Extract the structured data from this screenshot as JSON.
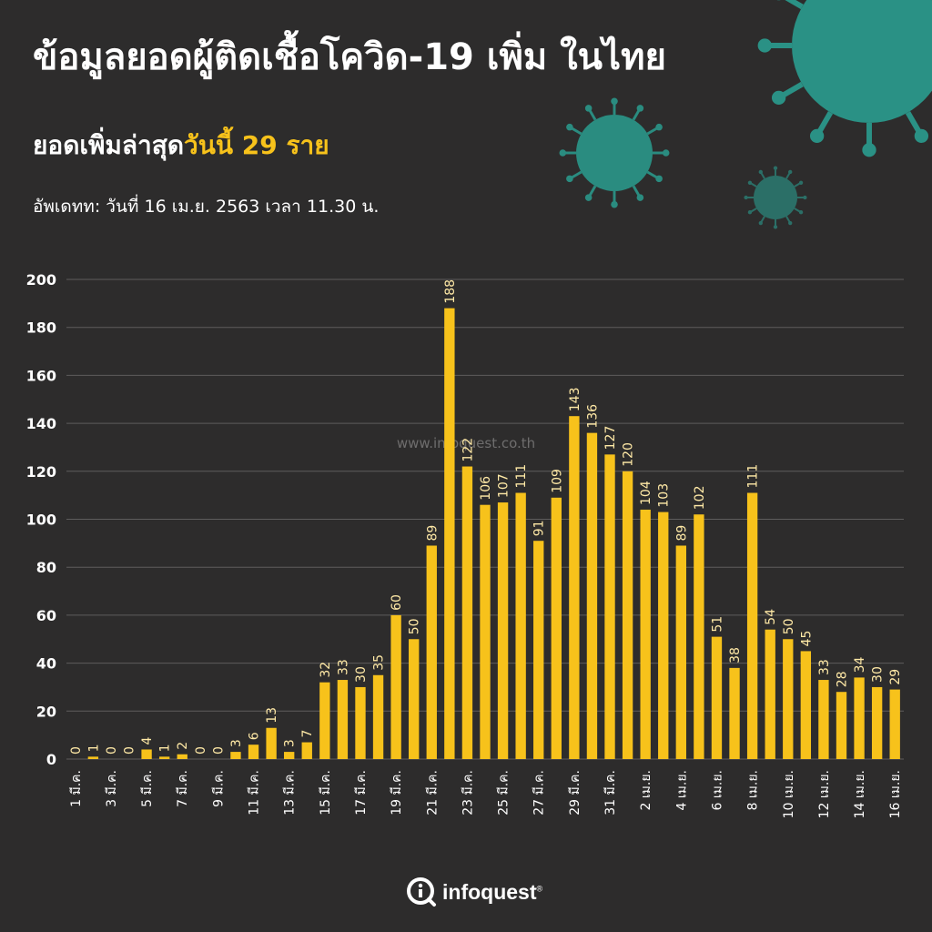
{
  "header": {
    "title": "ข้อมูลยอดผู้ติดเชื้อโควิด-19 เพิ่ม ในไทย",
    "subtitle_prefix": "ยอดเพิ่มล่าสุด",
    "subtitle_highlight": "วันนี้ 29 ราย",
    "update_label": "อัพเดทท: วันที่",
    "update_value": "16 เม.ย. 2563 เวลา 11.30 น."
  },
  "watermark": "www.infoquest.co.th",
  "footer": {
    "brand": "infoquest",
    "mark": "®"
  },
  "colors": {
    "background": "#2d2c2c",
    "bar": "#f7c21b",
    "text": "#ffffff",
    "virus": "#2a9d8f"
  },
  "chart_data": {
    "type": "bar",
    "categories": [
      "1 มี.ค.",
      "2 มี.ค.",
      "3 มี.ค.",
      "4 มี.ค.",
      "5 มี.ค.",
      "6 มี.ค.",
      "7 มี.ค.",
      "8 มี.ค.",
      "9 มี.ค.",
      "10 มี.ค.",
      "11 มี.ค.",
      "12 มี.ค.",
      "13 มี.ค.",
      "14 มี.ค.",
      "15 มี.ค.",
      "16 มี.ค.",
      "17 มี.ค.",
      "18 มี.ค.",
      "19 มี.ค.",
      "20 มี.ค.",
      "21 มี.ค.",
      "22 มี.ค.",
      "23 มี.ค.",
      "24 มี.ค.",
      "25 มี.ค.",
      "26 มี.ค.",
      "27 มี.ค.",
      "28 มี.ค.",
      "29 มี.ค.",
      "30 มี.ค.",
      "31 มี.ค.",
      "1 เม.ย.",
      "2 เม.ย.",
      "3 เม.ย.",
      "4 เม.ย.",
      "5 เม.ย.",
      "6 เม.ย.",
      "7 เม.ย.",
      "8 เม.ย.",
      "9 เม.ย.",
      "10 เม.ย.",
      "11 เม.ย.",
      "12 เม.ย.",
      "13 เม.ย.",
      "14 เม.ย.",
      "15 เม.ย.",
      "16 เม.ย."
    ],
    "visible_tick_labels": [
      "1 มี.ค.",
      "3 มี.ค.",
      "5 มี.ค.",
      "7 มี.ค.",
      "9 มี.ค.",
      "11 มี.ค.",
      "13 มี.ค.",
      "15 มี.ค.",
      "17 มี.ค.",
      "19 มี.ค.",
      "21 มี.ค.",
      "23 มี.ค.",
      "25 มี.ค.",
      "27 มี.ค.",
      "29 มี.ค.",
      "31 มี.ค.",
      "2 เม.ย.",
      "4 เม.ย.",
      "6 เม.ย.",
      "8 เม.ย.",
      "10 เม.ย.",
      "12 เม.ย.",
      "14 เม.ย.",
      "16 เม.ย."
    ],
    "values": [
      0,
      1,
      0,
      0,
      4,
      1,
      2,
      0,
      0,
      3,
      6,
      13,
      3,
      7,
      32,
      33,
      30,
      35,
      60,
      50,
      89,
      188,
      122,
      106,
      107,
      111,
      91,
      109,
      143,
      136,
      127,
      120,
      104,
      103,
      89,
      102,
      51,
      38,
      111,
      54,
      50,
      45,
      33,
      28,
      34,
      30,
      29
    ],
    "ylim": [
      0,
      200
    ],
    "yticks": [
      0,
      20,
      40,
      60,
      80,
      100,
      120,
      140,
      160,
      180,
      200
    ],
    "grid": true,
    "data_labels": true
  }
}
